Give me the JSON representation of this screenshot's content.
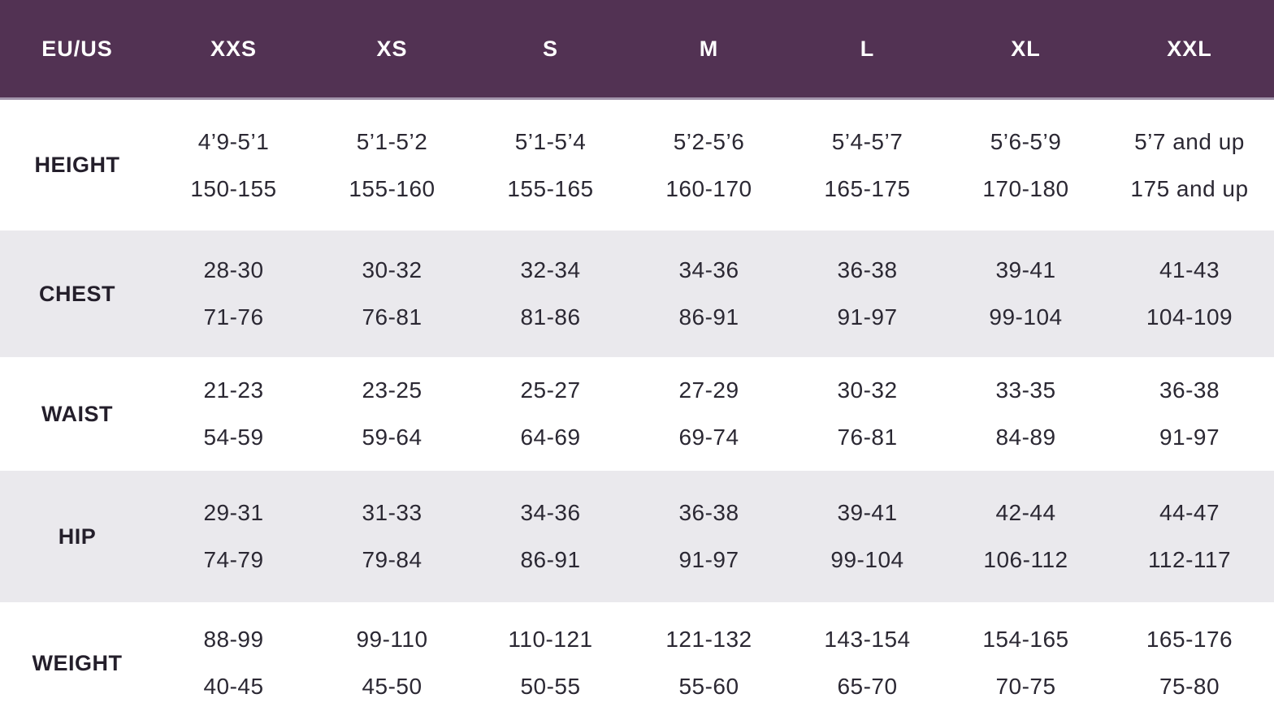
{
  "chart_data": {
    "type": "table",
    "header": [
      "EU/US",
      "XXS",
      "XS",
      "S",
      "M",
      "L",
      "XL",
      "XXL"
    ],
    "rows": [
      {
        "label": "HEIGHT",
        "imperial": [
          "4’9-5’1",
          "5’1-5’2",
          "5’1-5’4",
          "5’2-5’6",
          "5’4-5’7",
          "5’6-5’9",
          "5’7 and up"
        ],
        "metric": [
          "150-155",
          "155-160",
          "155-165",
          "160-170",
          "165-175",
          "170-180",
          "175 and up"
        ]
      },
      {
        "label": "CHEST",
        "imperial": [
          "28-30",
          "30-32",
          "32-34",
          "34-36",
          "36-38",
          "39-41",
          "41-43"
        ],
        "metric": [
          "71-76",
          "76-81",
          "81-86",
          "86-91",
          "91-97",
          "99-104",
          "104-109"
        ]
      },
      {
        "label": "WAIST",
        "imperial": [
          "21-23",
          "23-25",
          "25-27",
          "27-29",
          "30-32",
          "33-35",
          "36-38"
        ],
        "metric": [
          "54-59",
          "59-64",
          "64-69",
          "69-74",
          "76-81",
          "84-89",
          "91-97"
        ]
      },
      {
        "label": "HIP",
        "imperial": [
          "29-31",
          "31-33",
          "34-36",
          "36-38",
          "39-41",
          "42-44",
          "44-47"
        ],
        "metric": [
          "74-79",
          "79-84",
          "86-91",
          "91-97",
          "99-104",
          "106-112",
          "112-117"
        ]
      },
      {
        "label": "WEIGHT",
        "imperial": [
          "88-99",
          "99-110",
          "110-121",
          "121-132",
          "143-154",
          "154-165",
          "165-176"
        ],
        "metric": [
          "40-45",
          "45-50",
          "50-55",
          "55-60",
          "65-70",
          "70-75",
          "75-80"
        ]
      }
    ]
  },
  "colors": {
    "header_bg": "#523253",
    "header_divider": "#A294AB",
    "header_text": "#FFFFFF",
    "row_bg": "#FFFFFF",
    "row_alt_bg": "#EAE9ED",
    "label_text": "#241F2B",
    "cell_text": "#2B2833"
  }
}
